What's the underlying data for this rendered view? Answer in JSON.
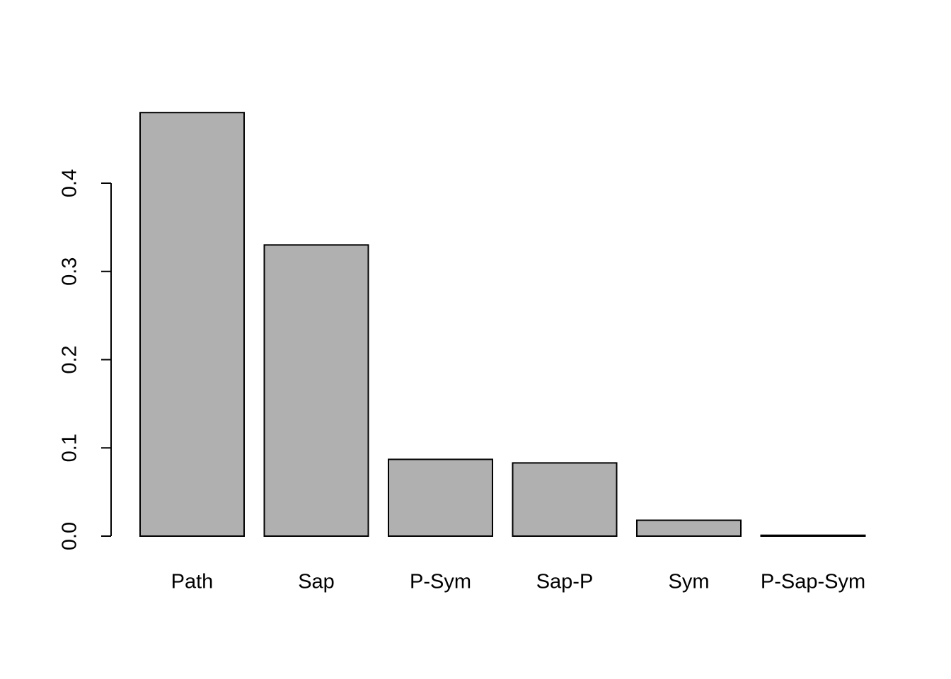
{
  "chart_data": {
    "type": "bar",
    "categories": [
      "Path",
      "Sap",
      "P-Sym",
      "Sap-P",
      "Sym",
      "P-Sap-Sym"
    ],
    "values": [
      0.48,
      0.33,
      0.087,
      0.083,
      0.018,
      0.001
    ],
    "color": "#b0b0b0",
    "ylim": [
      0,
      0.5
    ],
    "yticks": [
      {
        "value": 0,
        "label": "0.0"
      },
      0.1,
      0.2,
      0.3,
      0.4
    ],
    "grid": false
  }
}
